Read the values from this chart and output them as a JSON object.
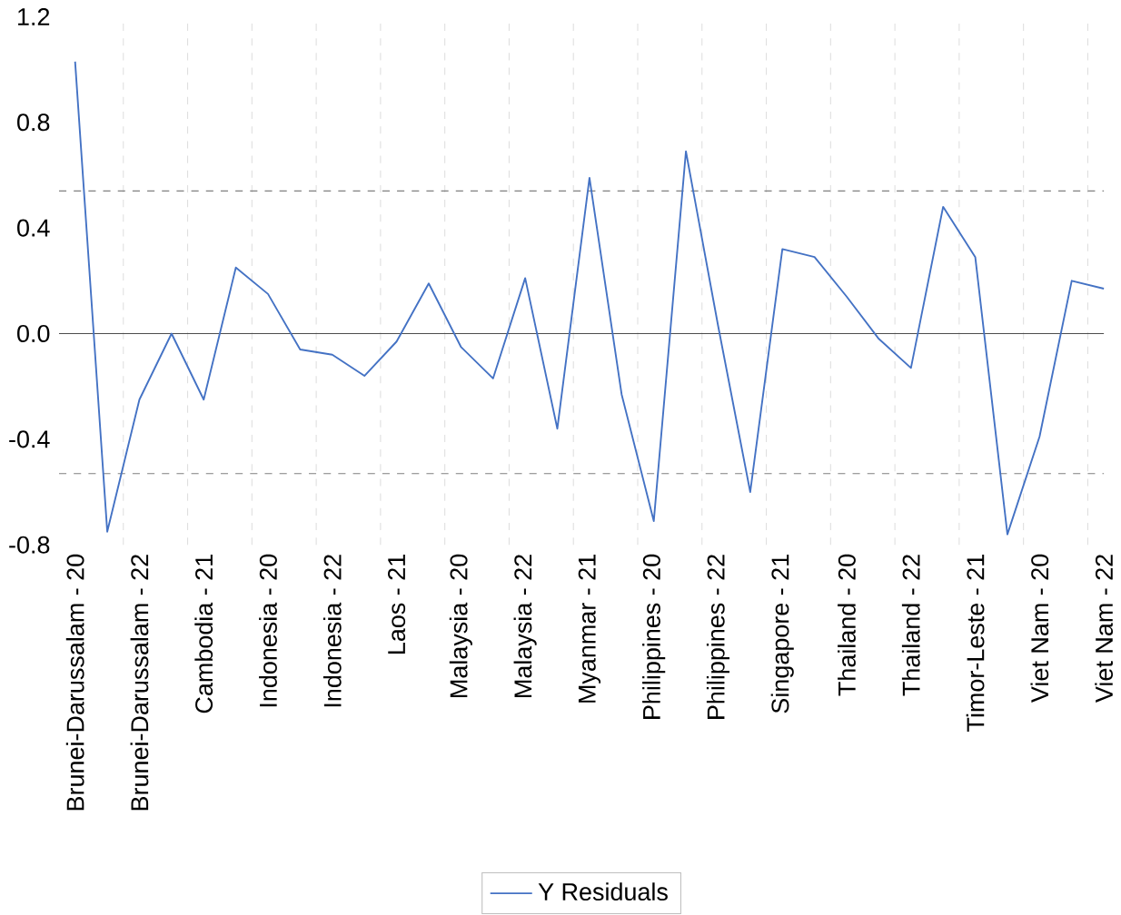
{
  "chart_data": {
    "type": "line",
    "categories": [
      "Brunei-Darussalam - 20",
      null,
      "Brunei-Darussalam - 22",
      null,
      "Cambodia - 21",
      null,
      "Indonesia - 20",
      null,
      "Indonesia - 22",
      null,
      "Laos - 21",
      null,
      "Malaysia - 20",
      null,
      "Malaysia - 22",
      null,
      "Myanmar - 21",
      null,
      "Philippines - 20",
      null,
      "Philippines - 22",
      null,
      "Singapore - 21",
      null,
      "Thailand - 20",
      null,
      "Thailand - 22",
      null,
      "Timor-Leste - 21",
      null,
      "Viet Nam - 20",
      null,
      "Viet Nam - 22"
    ],
    "series": [
      {
        "name": "Y Residuals",
        "color": "#4472c4",
        "values": [
          1.03,
          -0.75,
          -0.25,
          0.0,
          -0.25,
          0.25,
          0.15,
          -0.06,
          -0.08,
          -0.16,
          -0.03,
          0.19,
          -0.05,
          -0.17,
          0.21,
          -0.36,
          0.59,
          -0.23,
          -0.71,
          0.69,
          0.03,
          -0.6,
          0.32,
          0.29,
          0.14,
          -0.02,
          -0.13,
          0.48,
          0.29,
          -0.76,
          -0.39,
          0.2,
          0.17
        ]
      }
    ],
    "ylim": [
      -0.8,
      1.2
    ],
    "yticks": [
      -0.8,
      -0.4,
      {
        "value": 0,
        "label": "0.0"
      },
      0.4,
      0.8,
      1.2
    ],
    "ref_lines": [
      {
        "axis": "y",
        "value": 0.54,
        "color": "#808080",
        "line_style": "dashed"
      },
      {
        "axis": "y",
        "value": -0.53,
        "color": "#808080",
        "line_style": "dashed"
      }
    ],
    "grid": "x",
    "legend": "bottom",
    "marker": "none",
    "line_style": "solid"
  }
}
